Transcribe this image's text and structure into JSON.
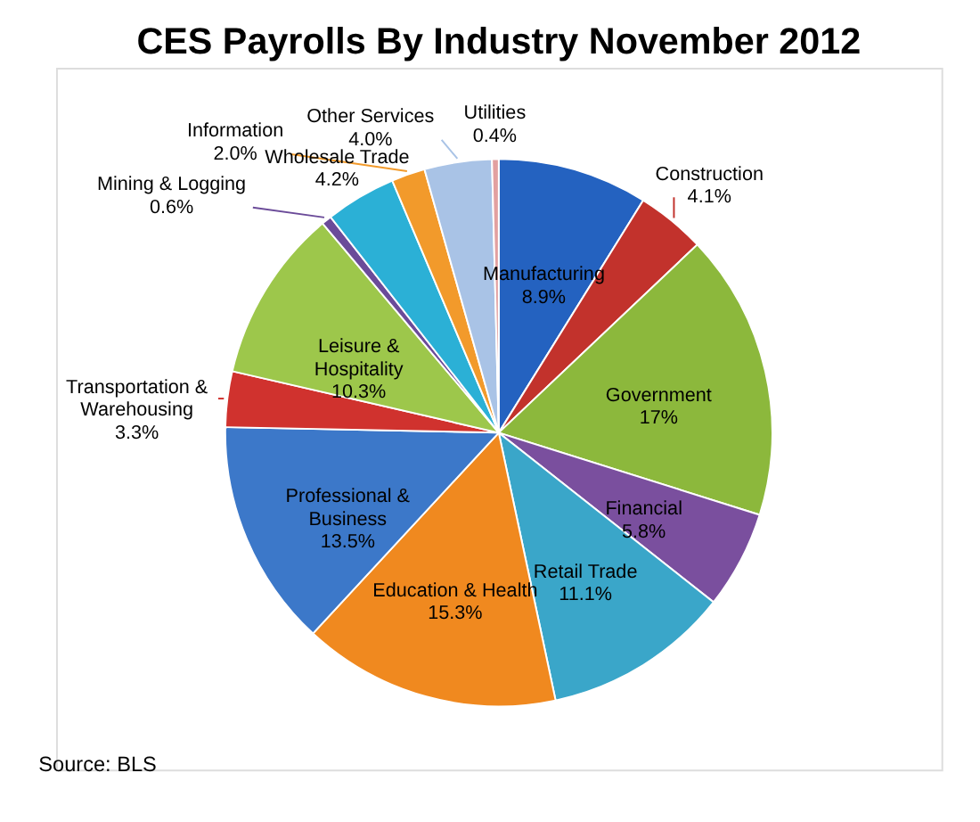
{
  "chart_data": {
    "type": "pie",
    "title": "CES Payrolls By Industry November 2012",
    "categories": [
      "Manufacturing",
      "Construction",
      "Government",
      "Financial",
      "Retail Trade",
      "Education & Health",
      "Professional & Business",
      "Transportation & Warehousing",
      "Leisure & Hospitality",
      "Mining & Logging",
      "Wholesale Trade",
      "Information",
      "Other Services",
      "Utilities"
    ],
    "values": [
      8.9,
      4.1,
      17,
      5.8,
      11.1,
      15.3,
      13.5,
      3.3,
      10.3,
      0.6,
      4.2,
      2.0,
      4.0,
      0.4
    ],
    "value_labels": [
      "8.9%",
      "4.1%",
      "17%",
      "5.8%",
      "11.1%",
      "15.3%",
      "13.5%",
      "3.3%",
      "10.3%",
      "0.6%",
      "4.2%",
      "2.0%",
      "4.0%",
      "0.4%"
    ],
    "colors": [
      "#2462c0",
      "#c2322c",
      "#8cb83c",
      "#7a4f9e",
      "#3aa6c9",
      "#f0891f",
      "#3c78c9",
      "#d0322e",
      "#9dc74b",
      "#6b4b99",
      "#2bb0d6",
      "#f29a2b",
      "#a9c3e6",
      "#e2a0a0"
    ],
    "legend": false,
    "annotations": [
      "Source:  BLS"
    ]
  }
}
